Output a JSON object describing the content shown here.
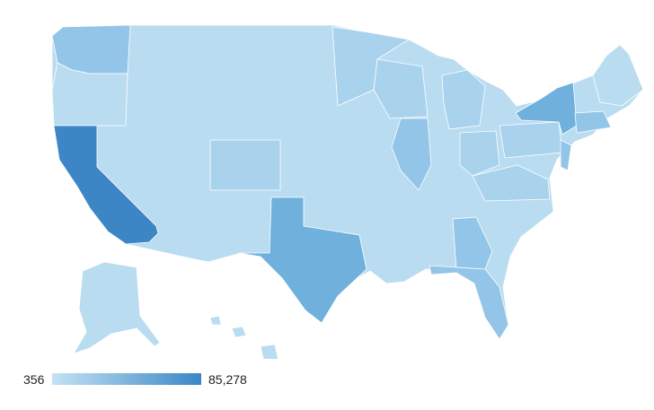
{
  "legend": {
    "min_label": "356",
    "max_label": "85,278",
    "min_color": "#c3e2f4",
    "max_color": "#3a87c5"
  },
  "colors": {
    "lightest": "#b9dcf1",
    "light": "#a9d2ed",
    "medium": "#92c5e8",
    "mid_dark": "#6fb0dc",
    "dark": "#3d86c6",
    "border": "#ffffff"
  },
  "regions": [
    {
      "name": "california",
      "shade": "dark"
    },
    {
      "name": "texas",
      "shade": "mid_dark"
    },
    {
      "name": "new-york",
      "shade": "mid_dark"
    },
    {
      "name": "florida",
      "shade": "medium"
    },
    {
      "name": "illinois",
      "shade": "medium"
    },
    {
      "name": "washington",
      "shade": "medium"
    },
    {
      "name": "pennsylvania",
      "shade": "light"
    },
    {
      "name": "new-jersey",
      "shade": "medium"
    },
    {
      "name": "georgia",
      "shade": "medium"
    },
    {
      "name": "massachusetts",
      "shade": "medium"
    }
  ]
}
